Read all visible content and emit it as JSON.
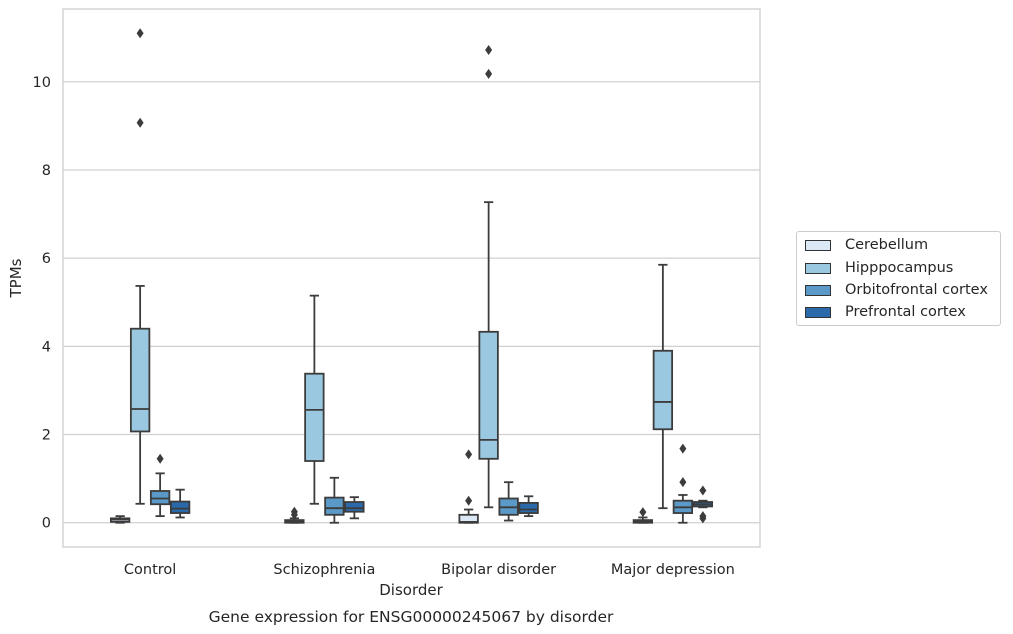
{
  "chart_data": {
    "type": "box",
    "xlabel": "Disorder",
    "ylabel": "TPMs",
    "caption": "Gene expression for ENSG00000245067 by disorder",
    "categories": [
      "Control",
      "Schizophrenia",
      "Bipolar disorder",
      "Major depression"
    ],
    "ylim": [
      -0.55,
      11.65
    ],
    "yticks": [
      0,
      2,
      4,
      6,
      8,
      10
    ],
    "grid": "horizontal",
    "legend_position": "center-right",
    "series": [
      {
        "name": "Cerebellum",
        "color": "#dbe9f6",
        "boxes": [
          {
            "whislo": 0.0,
            "q1": 0.02,
            "med": 0.07,
            "q3": 0.1,
            "whishi": 0.15,
            "fliers": []
          },
          {
            "whislo": 0.0,
            "q1": 0.0,
            "med": 0.03,
            "q3": 0.06,
            "whishi": 0.1,
            "fliers": [
              0.18,
              0.25
            ]
          },
          {
            "whislo": 0.0,
            "q1": 0.0,
            "med": 0.02,
            "q3": 0.18,
            "whishi": 0.3,
            "fliers": [
              0.5,
              1.55
            ]
          },
          {
            "whislo": 0.0,
            "q1": 0.0,
            "med": 0.03,
            "q3": 0.06,
            "whishi": 0.12,
            "fliers": [
              0.24
            ]
          }
        ]
      },
      {
        "name": "Hipppocampus",
        "color": "#9ac8e0",
        "boxes": [
          {
            "whislo": 0.43,
            "q1": 2.07,
            "med": 2.58,
            "q3": 4.4,
            "whishi": 5.37,
            "fliers": [
              9.07,
              11.1
            ]
          },
          {
            "whislo": 0.43,
            "q1": 1.4,
            "med": 2.56,
            "q3": 3.38,
            "whishi": 5.15,
            "fliers": []
          },
          {
            "whislo": 0.35,
            "q1": 1.45,
            "med": 1.88,
            "q3": 4.33,
            "whishi": 7.27,
            "fliers": [
              10.18,
              10.72
            ]
          },
          {
            "whislo": 0.33,
            "q1": 2.12,
            "med": 2.74,
            "q3": 3.9,
            "whishi": 5.85,
            "fliers": []
          }
        ]
      },
      {
        "name": "Orbitofrontal cortex",
        "color": "#5b9ac8",
        "boxes": [
          {
            "whislo": 0.15,
            "q1": 0.42,
            "med": 0.55,
            "q3": 0.72,
            "whishi": 1.12,
            "fliers": [
              1.45
            ]
          },
          {
            "whislo": 0.0,
            "q1": 0.18,
            "med": 0.33,
            "q3": 0.57,
            "whishi": 1.02,
            "fliers": []
          },
          {
            "whislo": 0.05,
            "q1": 0.18,
            "med": 0.35,
            "q3": 0.55,
            "whishi": 0.92,
            "fliers": []
          },
          {
            "whislo": 0.0,
            "q1": 0.22,
            "med": 0.35,
            "q3": 0.5,
            "whishi": 0.63,
            "fliers": [
              0.92,
              1.68
            ]
          }
        ]
      },
      {
        "name": "Prefrontal cortex",
        "color": "#2a6aaa",
        "boxes": [
          {
            "whislo": 0.12,
            "q1": 0.22,
            "med": 0.32,
            "q3": 0.48,
            "whishi": 0.75,
            "fliers": []
          },
          {
            "whislo": 0.1,
            "q1": 0.25,
            "med": 0.33,
            "q3": 0.47,
            "whishi": 0.58,
            "fliers": []
          },
          {
            "whislo": 0.15,
            "q1": 0.22,
            "med": 0.3,
            "q3": 0.45,
            "whishi": 0.6,
            "fliers": []
          },
          {
            "whislo": 0.35,
            "q1": 0.37,
            "med": 0.42,
            "q3": 0.47,
            "whishi": 0.5,
            "fliers": [
              0.1,
              0.15,
              0.73
            ]
          }
        ]
      }
    ]
  }
}
